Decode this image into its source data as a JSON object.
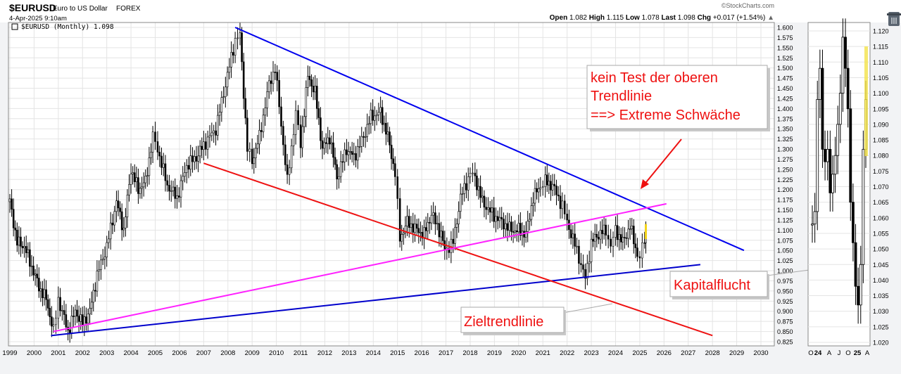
{
  "header": {
    "symbol": "$EURUSD",
    "name": "Euro to US Dollar",
    "exchange": "FOREX",
    "timestamp": "4-Apr-2025 9:10am",
    "watermark": "©StockCharts.com",
    "ohlc": [
      {
        "label": "Open",
        "value": "1.082"
      },
      {
        "label": "High",
        "value": "1.115"
      },
      {
        "label": "Low",
        "value": "1.078"
      },
      {
        "label": "Last",
        "value": "1.098"
      },
      {
        "label": "Chg",
        "value": "+0.017 (+1.54%)"
      }
    ],
    "chg_arrow": "▲",
    "legend": "$EURUSD (Monthly) 1.098"
  },
  "annotations": {
    "top_note": [
      "kein Test der oberen",
      "Trendlinie",
      "==> Extreme Schwäche"
    ],
    "capital_flight": "Kapitalflucht",
    "target_line": "Zieltrendlinie"
  },
  "colors": {
    "upper_trend": "#0000ee",
    "lower_trend": "#0000cc",
    "target_trend": "#ee1111",
    "pink_trend": "#ff22ff",
    "annotation_text": "#ee1111",
    "last_bar": "#f2d31a"
  },
  "chart_data": [
    {
      "type": "line",
      "title": "$EURUSD (Monthly)",
      "xlabel": "",
      "ylabel": "",
      "x_ticks": [
        "1999",
        "2000",
        "2001",
        "2002",
        "2003",
        "2004",
        "2005",
        "2006",
        "2007",
        "2008",
        "2009",
        "2010",
        "2011",
        "2012",
        "2013",
        "2014",
        "2015",
        "2016",
        "2017",
        "2018",
        "2019",
        "2020",
        "2021",
        "2022",
        "2023",
        "2024",
        "2025",
        "2026",
        "2027",
        "2028",
        "2029",
        "2030"
      ],
      "y_ticks": [
        "0.825",
        "0.850",
        "0.875",
        "0.900",
        "0.925",
        "0.950",
        "0.975",
        "1.000",
        "1.025",
        "1.050",
        "1.075",
        "1.100",
        "1.125",
        "1.150",
        "1.175",
        "1.200",
        "1.225",
        "1.250",
        "1.275",
        "1.300",
        "1.325",
        "1.350",
        "1.375",
        "1.400",
        "1.425",
        "1.450",
        "1.475",
        "1.500",
        "1.525",
        "1.550",
        "1.575",
        "1.600"
      ],
      "xlim": [
        1999,
        2030
      ],
      "ylim": [
        0.815,
        1.61
      ],
      "grid": true,
      "series": [
        {
          "points": [
            [
              1999.0,
              1.17
            ],
            [
              1999.3,
              1.07
            ],
            [
              1999.6,
              1.06
            ],
            [
              1999.9,
              1.01
            ],
            [
              2000.2,
              0.96
            ],
            [
              2000.5,
              0.93
            ],
            [
              2000.8,
              0.85
            ],
            [
              2001.0,
              0.93
            ],
            [
              2001.4,
              0.85
            ],
            [
              2001.7,
              0.9
            ],
            [
              2002.0,
              0.87
            ],
            [
              2002.3,
              0.9
            ],
            [
              2002.6,
              0.99
            ],
            [
              2003.0,
              1.06
            ],
            [
              2003.4,
              1.17
            ],
            [
              2003.7,
              1.1
            ],
            [
              2004.0,
              1.25
            ],
            [
              2004.3,
              1.2
            ],
            [
              2004.6,
              1.22
            ],
            [
              2004.9,
              1.33
            ],
            [
              2005.1,
              1.3
            ],
            [
              2005.5,
              1.21
            ],
            [
              2005.9,
              1.18
            ],
            [
              2006.3,
              1.26
            ],
            [
              2006.7,
              1.28
            ],
            [
              2007.0,
              1.31
            ],
            [
              2007.5,
              1.35
            ],
            [
              2007.9,
              1.46
            ],
            [
              2008.3,
              1.57
            ],
            [
              2008.5,
              1.58
            ],
            [
              2008.8,
              1.3
            ],
            [
              2009.0,
              1.27
            ],
            [
              2009.3,
              1.33
            ],
            [
              2009.7,
              1.46
            ],
            [
              2009.95,
              1.5
            ],
            [
              2010.2,
              1.36
            ],
            [
              2010.45,
              1.22
            ],
            [
              2010.8,
              1.39
            ],
            [
              2011.0,
              1.31
            ],
            [
              2011.3,
              1.48
            ],
            [
              2011.6,
              1.44
            ],
            [
              2011.9,
              1.3
            ],
            [
              2012.2,
              1.33
            ],
            [
              2012.5,
              1.23
            ],
            [
              2012.9,
              1.3
            ],
            [
              2013.2,
              1.28
            ],
            [
              2013.6,
              1.33
            ],
            [
              2013.9,
              1.38
            ],
            [
              2014.3,
              1.39
            ],
            [
              2014.6,
              1.33
            ],
            [
              2014.9,
              1.24
            ],
            [
              2015.1,
              1.08
            ],
            [
              2015.4,
              1.12
            ],
            [
              2015.8,
              1.1
            ],
            [
              2016.1,
              1.09
            ],
            [
              2016.4,
              1.14
            ],
            [
              2016.8,
              1.09
            ],
            [
              2016.95,
              1.05
            ],
            [
              2017.3,
              1.07
            ],
            [
              2017.6,
              1.18
            ],
            [
              2018.0,
              1.24
            ],
            [
              2018.2,
              1.23
            ],
            [
              2018.5,
              1.17
            ],
            [
              2018.9,
              1.14
            ],
            [
              2019.3,
              1.12
            ],
            [
              2019.7,
              1.1
            ],
            [
              2020.0,
              1.1
            ],
            [
              2020.3,
              1.09
            ],
            [
              2020.6,
              1.18
            ],
            [
              2020.9,
              1.21
            ],
            [
              2021.1,
              1.22
            ],
            [
              2021.4,
              1.21
            ],
            [
              2021.8,
              1.16
            ],
            [
              2022.0,
              1.12
            ],
            [
              2022.4,
              1.05
            ],
            [
              2022.75,
              0.98
            ],
            [
              2023.0,
              1.07
            ],
            [
              2023.3,
              1.09
            ],
            [
              2023.6,
              1.1
            ],
            [
              2023.8,
              1.06
            ],
            [
              2024.0,
              1.1
            ],
            [
              2024.3,
              1.07
            ],
            [
              2024.6,
              1.11
            ],
            [
              2024.9,
              1.04
            ],
            [
              2025.0,
              1.03
            ],
            [
              2025.2,
              1.08
            ],
            [
              2025.25,
              1.098
            ]
          ]
        }
      ],
      "trendlines": [
        {
          "from": [
            2008.3,
            1.6
          ],
          "to": [
            2029.3,
            1.05
          ]
        },
        {
          "from": [
            2000.7,
            0.84
          ],
          "to": [
            2027.5,
            1.015
          ]
        },
        {
          "from": [
            2007.0,
            1.265
          ],
          "to": [
            2028.0,
            0.84
          ]
        },
        {
          "from": [
            2000.8,
            0.85
          ],
          "to": [
            2026.1,
            1.165
          ]
        }
      ]
    },
    {
      "type": "line",
      "title": "",
      "x_ticks": [
        "O",
        "24",
        "A",
        "J",
        "O",
        "25",
        "A"
      ],
      "y_ticks": [
        "1.020",
        "1.025",
        "1.030",
        "1.035",
        "1.040",
        "1.045",
        "1.050",
        "1.055",
        "1.060",
        "1.065",
        "1.070",
        "1.075",
        "1.080",
        "1.085",
        "1.090",
        "1.095",
        "1.100",
        "1.105",
        "1.110",
        "1.115",
        "1.120"
      ],
      "ylim": [
        1.015,
        1.123
      ],
      "grid": true,
      "series": [
        {
          "points": [
            [
              1,
              1.058
            ],
            [
              2,
              1.062
            ],
            [
              3,
              1.098
            ],
            [
              4,
              1.108
            ],
            [
              5,
              1.082
            ],
            [
              6,
              1.078
            ],
            [
              7,
              1.082
            ],
            [
              8,
              1.068
            ],
            [
              9,
              1.074
            ],
            [
              10,
              1.08
            ],
            [
              11,
              1.09
            ],
            [
              12,
              1.1
            ],
            [
              13,
              1.118
            ],
            [
              14,
              1.108
            ],
            [
              15,
              1.095
            ],
            [
              16,
              1.065
            ],
            [
              17,
              1.052
            ],
            [
              18,
              1.038
            ],
            [
              19,
              1.032
            ],
            [
              20,
              1.045
            ],
            [
              21,
              1.082
            ],
            [
              22,
              1.098
            ]
          ]
        }
      ]
    }
  ]
}
